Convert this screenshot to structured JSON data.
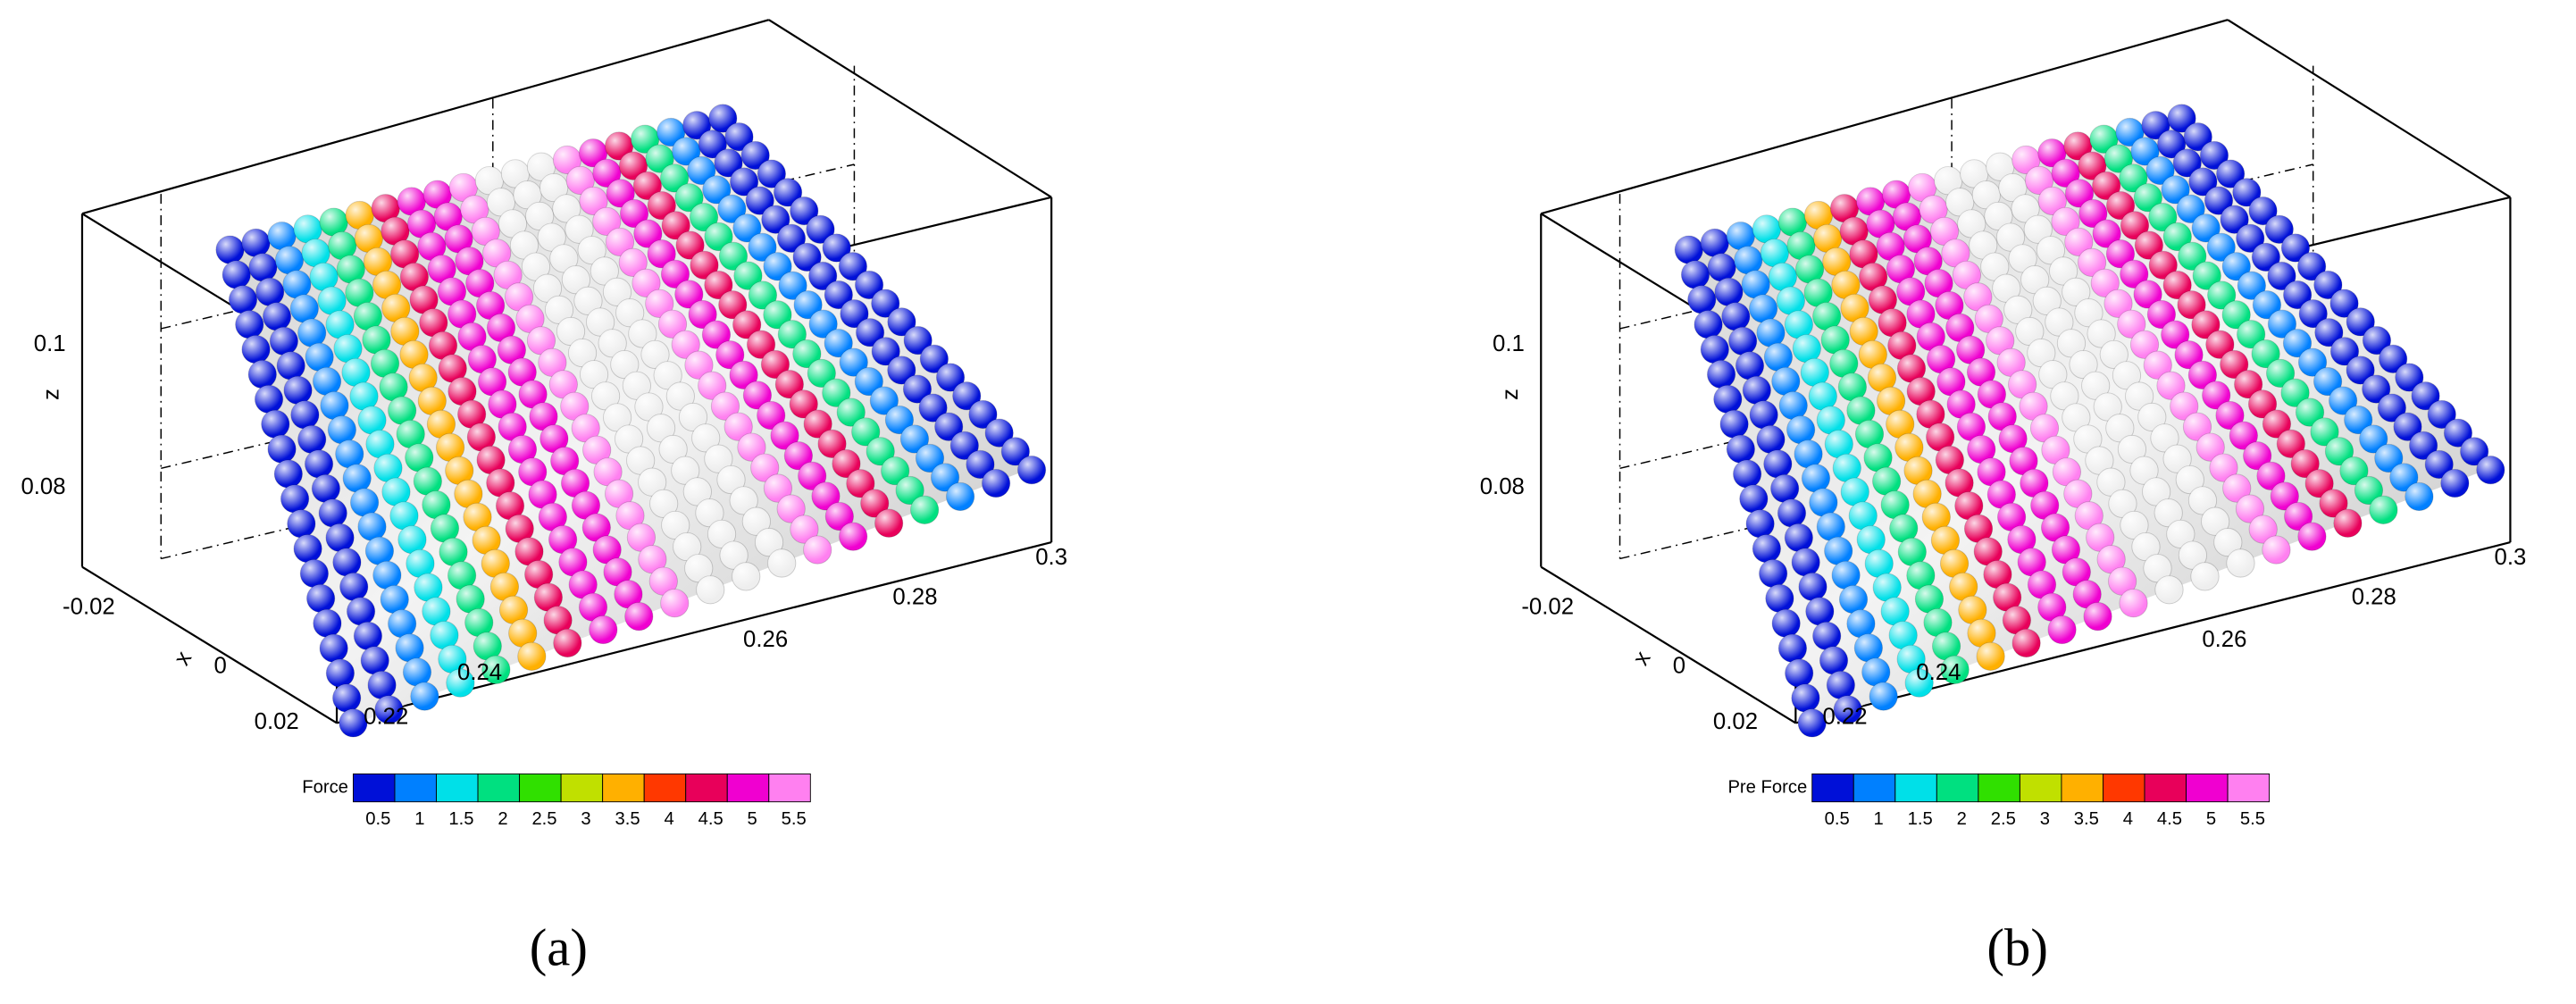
{
  "panels": [
    {
      "axes": {
        "z_label": "z",
        "z_ticks": [
          "0.1",
          "0.08"
        ],
        "x_label": "x",
        "x_ticks": [
          "-0.02",
          "0",
          "0.02"
        ],
        "y_ticks": [
          "0.22",
          "0.24",
          "0.26",
          "0.28",
          "0.3"
        ]
      },
      "colorbar": {
        "label": "Force",
        "ticks": [
          "0.5",
          "1",
          "1.5",
          "2",
          "2.5",
          "3",
          "3.5",
          "4",
          "4.5",
          "5",
          "5.5"
        ],
        "colors": [
          "#0010d8",
          "#0080ff",
          "#00e0e8",
          "#00e080",
          "#30e000",
          "#c0e000",
          "#ffb000",
          "#ff3800",
          "#e8005a",
          "#f000d0",
          "#ff80f0"
        ]
      },
      "caption": "(a)"
    },
    {
      "axes": {
        "z_label": "z",
        "z_ticks": [
          "0.1",
          "0.08"
        ],
        "x_label": "x",
        "x_ticks": [
          "-0.02",
          "0",
          "0.02"
        ],
        "y_ticks": [
          "0.22",
          "0.24",
          "0.26",
          "0.28",
          "0.3"
        ]
      },
      "colorbar": {
        "label": "Pre Force",
        "ticks": [
          "0.5",
          "1",
          "1.5",
          "2",
          "2.5",
          "3",
          "3.5",
          "4",
          "4.5",
          "5",
          "5.5"
        ],
        "colors": [
          "#0010d8",
          "#0080ff",
          "#00e0e8",
          "#00e080",
          "#30e000",
          "#c0e000",
          "#ffb000",
          "#ff3800",
          "#e8005a",
          "#f000d0",
          "#ff80f0"
        ]
      },
      "caption": "(b)"
    }
  ]
}
